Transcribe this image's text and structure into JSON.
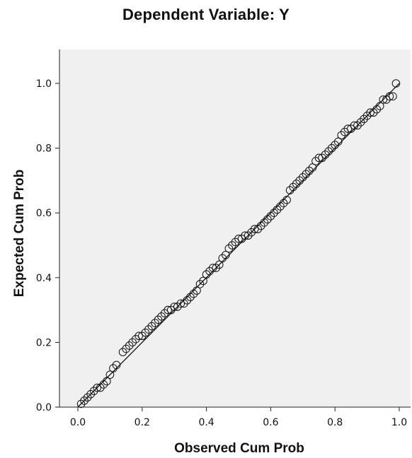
{
  "title": "Dependent Variable: Y",
  "chart_data": {
    "type": "scatter",
    "title": "Dependent Variable: Y",
    "xlabel": "Observed Cum Prob",
    "ylabel": "Expected Cum Prob",
    "xlim": [
      0.0,
      1.0
    ],
    "ylim": [
      0.0,
      1.0
    ],
    "x_ticks": [
      "0.0",
      "0.2",
      "0.4",
      "0.6",
      "0.8",
      "1.0"
    ],
    "y_ticks": [
      "0.0",
      "0.2",
      "0.4",
      "0.6",
      "0.8",
      "1.0"
    ],
    "grid": false,
    "reference_line": {
      "from": [
        0.0,
        0.0
      ],
      "to": [
        1.0,
        1.0
      ]
    },
    "colors": {
      "plot_background": "#f0f0f0",
      "points": "#111111",
      "line": "#111111"
    },
    "series": [
      {
        "x": [
          0.01,
          0.02,
          0.03,
          0.04,
          0.05,
          0.06,
          0.07,
          0.08,
          0.09,
          0.1,
          0.11,
          0.12,
          0.14,
          0.15,
          0.16,
          0.17,
          0.18,
          0.19,
          0.2,
          0.21,
          0.22,
          0.23,
          0.24,
          0.25,
          0.26,
          0.27,
          0.28,
          0.29,
          0.3,
          0.31,
          0.32,
          0.33,
          0.34,
          0.35,
          0.36,
          0.37,
          0.38,
          0.39,
          0.4,
          0.41,
          0.42,
          0.43,
          0.44,
          0.45,
          0.46,
          0.47,
          0.48,
          0.49,
          0.5,
          0.51,
          0.52,
          0.53,
          0.54,
          0.55,
          0.56,
          0.57,
          0.58,
          0.59,
          0.6,
          0.61,
          0.62,
          0.63,
          0.64,
          0.65,
          0.66,
          0.67,
          0.68,
          0.69,
          0.7,
          0.71,
          0.72,
          0.73,
          0.74,
          0.75,
          0.76,
          0.77,
          0.78,
          0.79,
          0.8,
          0.81,
          0.82,
          0.83,
          0.84,
          0.85,
          0.86,
          0.87,
          0.88,
          0.89,
          0.9,
          0.91,
          0.92,
          0.93,
          0.94,
          0.95,
          0.96,
          0.97,
          0.98,
          0.99
        ],
        "y": [
          0.01,
          0.02,
          0.03,
          0.04,
          0.05,
          0.06,
          0.06,
          0.07,
          0.08,
          0.1,
          0.12,
          0.13,
          0.17,
          0.18,
          0.19,
          0.2,
          0.21,
          0.22,
          0.22,
          0.23,
          0.24,
          0.25,
          0.26,
          0.27,
          0.28,
          0.29,
          0.3,
          0.3,
          0.31,
          0.31,
          0.32,
          0.32,
          0.33,
          0.34,
          0.35,
          0.36,
          0.38,
          0.39,
          0.41,
          0.42,
          0.43,
          0.43,
          0.44,
          0.46,
          0.47,
          0.49,
          0.5,
          0.51,
          0.52,
          0.52,
          0.53,
          0.53,
          0.54,
          0.55,
          0.55,
          0.56,
          0.57,
          0.58,
          0.59,
          0.6,
          0.61,
          0.62,
          0.63,
          0.64,
          0.67,
          0.68,
          0.69,
          0.7,
          0.71,
          0.72,
          0.73,
          0.74,
          0.76,
          0.77,
          0.77,
          0.78,
          0.79,
          0.8,
          0.81,
          0.82,
          0.84,
          0.85,
          0.86,
          0.86,
          0.87,
          0.87,
          0.88,
          0.89,
          0.9,
          0.91,
          0.91,
          0.92,
          0.93,
          0.95,
          0.95,
          0.96,
          0.96,
          1.0
        ]
      }
    ]
  }
}
